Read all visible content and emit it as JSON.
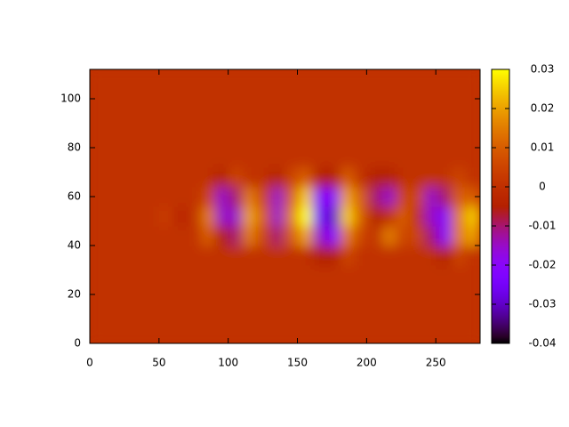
{
  "chart_data": {
    "type": "heatmap",
    "xlim": [
      0,
      282
    ],
    "ylim": [
      0,
      112
    ],
    "xticks": [
      0,
      50,
      100,
      150,
      200,
      250
    ],
    "yticks": [
      0,
      20,
      40,
      60,
      80,
      100
    ],
    "clim": [
      -0.04,
      0.03
    ],
    "cticks": [
      -0.04,
      -0.03,
      -0.02,
      -0.01,
      0,
      0.01,
      0.02,
      0.03
    ],
    "palette": "rgbformulae 7,5,15",
    "z": [
      [
        0,
        0,
        0,
        0,
        0,
        0,
        0,
        0,
        0,
        0,
        0,
        0,
        0,
        0,
        0,
        0,
        0,
        0,
        0,
        0,
        0,
        0,
        0,
        0,
        0,
        0,
        0,
        0
      ],
      [
        0,
        0,
        0,
        0,
        0,
        0,
        0,
        0,
        0,
        0,
        0,
        0,
        0,
        0,
        0,
        0,
        0,
        0,
        0,
        0,
        0,
        0,
        0,
        0,
        0,
        0,
        0,
        0
      ],
      [
        0,
        0,
        0,
        0,
        0,
        0,
        0,
        0,
        0,
        0,
        0,
        0,
        0,
        0,
        0,
        0,
        0,
        0,
        0,
        0,
        0,
        0,
        0,
        0,
        0,
        0,
        0,
        0
      ],
      [
        0,
        0,
        0,
        0,
        0,
        0,
        0,
        0,
        0,
        0,
        0,
        0,
        0,
        0,
        0,
        0,
        0,
        0,
        0,
        0,
        0,
        0,
        0,
        0,
        0,
        0,
        0,
        0
      ],
      [
        0,
        0,
        0,
        0,
        0,
        0,
        0,
        0,
        0,
        0,
        0,
        0,
        0,
        0,
        0,
        0,
        -0.005,
        -0.005,
        0.005,
        0,
        0,
        0,
        0,
        0,
        0,
        -0.005,
        0.005,
        0
      ],
      [
        0,
        0,
        0,
        0,
        0,
        0,
        0,
        0,
        0.01,
        -0.005,
        -0.01,
        0.015,
        0.005,
        -0.01,
        0.01,
        0.02,
        -0.015,
        -0.02,
        0.015,
        0.005,
        0,
        0.015,
        0.005,
        0.005,
        -0.01,
        -0.02,
        0.015,
        0.02
      ],
      [
        0,
        0,
        0,
        0,
        0,
        0.003,
        -0.003,
        0,
        0.015,
        -0.015,
        -0.015,
        0.02,
        0.01,
        -0.015,
        0.015,
        0.03,
        -0.025,
        -0.03,
        0.025,
        0.01,
        -0.005,
        0,
        0.01,
        0,
        -0.015,
        -0.02,
        0.015,
        0.025
      ],
      [
        0,
        0,
        0,
        0,
        0,
        0,
        0,
        0,
        0.005,
        -0.015,
        -0.01,
        0.015,
        0.005,
        -0.015,
        0.01,
        0.025,
        -0.02,
        -0.02,
        0.02,
        0.01,
        -0.01,
        -0.015,
        0.005,
        0.005,
        -0.015,
        -0.01,
        0.01,
        0.01
      ],
      [
        0,
        0,
        0,
        0,
        0,
        0,
        0,
        0,
        0,
        -0.005,
        0.005,
        0,
        0,
        -0.005,
        0.005,
        0.01,
        -0.005,
        -0.005,
        0.01,
        0,
        -0.005,
        -0.005,
        0,
        0,
        0,
        0,
        0.005,
        0
      ],
      [
        0,
        0,
        0,
        0,
        0,
        0,
        0,
        0,
        0,
        0,
        0,
        0,
        0,
        0,
        0,
        0,
        0,
        0,
        0,
        0,
        0,
        0,
        0,
        0,
        0,
        0,
        0,
        0
      ],
      [
        0,
        0,
        0,
        0,
        0,
        0,
        0,
        0,
        0,
        0,
        0,
        0,
        0,
        0,
        0,
        0,
        0,
        0,
        0,
        0,
        0,
        0,
        0,
        0,
        0,
        0,
        0,
        0
      ],
      [
        0,
        0,
        0,
        0,
        0,
        0,
        0,
        0,
        0,
        0,
        0,
        0,
        0,
        0,
        0,
        0,
        0,
        0,
        0,
        0,
        0,
        0,
        0,
        0,
        0,
        0,
        0,
        0
      ],
      [
        0,
        0,
        0,
        0,
        0,
        0,
        0,
        0,
        0,
        0,
        0,
        0,
        0,
        0,
        0,
        0,
        0,
        0,
        0,
        0,
        0,
        0,
        0,
        0,
        0,
        0,
        0,
        0
      ],
      [
        0,
        0,
        0,
        0,
        0,
        0,
        0,
        0,
        0,
        0,
        0,
        0,
        0,
        0,
        0,
        0,
        0,
        0,
        0,
        0,
        0,
        0,
        0,
        0,
        0,
        0,
        0,
        0
      ]
    ]
  }
}
